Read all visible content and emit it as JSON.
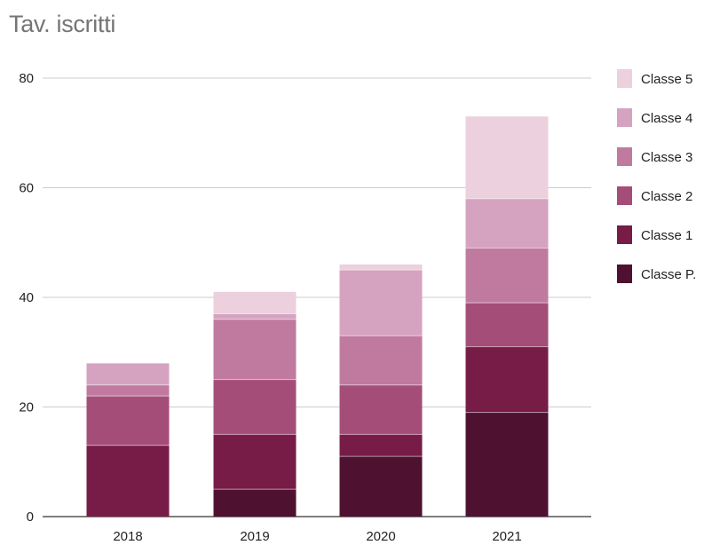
{
  "chart_data": {
    "type": "bar",
    "stacked": true,
    "title": "Tav. iscritti",
    "categories": [
      "2018",
      "2019",
      "2020",
      "2021"
    ],
    "series": [
      {
        "name": "Classe P.",
        "color": "#4e1230",
        "values": [
          0,
          5,
          11,
          19
        ]
      },
      {
        "name": "Classe 1",
        "color": "#761c47",
        "values": [
          13,
          10,
          4,
          12
        ]
      },
      {
        "name": "Classe 2",
        "color": "#a54d79",
        "values": [
          9,
          10,
          9,
          8
        ]
      },
      {
        "name": "Classe 3",
        "color": "#c17a9f",
        "values": [
          2,
          11,
          9,
          10
        ]
      },
      {
        "name": "Classe 4",
        "color": "#d5a3c0",
        "values": [
          4,
          1,
          12,
          9
        ]
      },
      {
        "name": "Classe 5",
        "color": "#ecd0dd",
        "values": [
          0,
          4,
          1,
          15
        ]
      }
    ],
    "yticks": [
      0,
      20,
      40,
      60,
      80
    ],
    "ylim": [
      0,
      80
    ],
    "grid": true,
    "legend_position": "right"
  }
}
